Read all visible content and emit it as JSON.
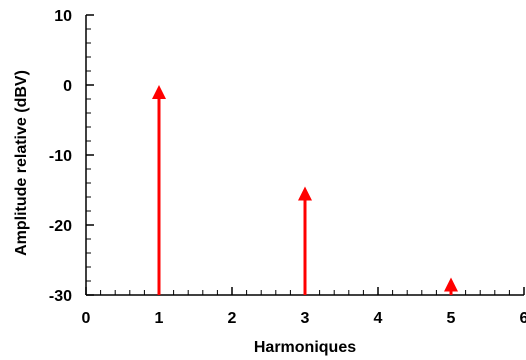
{
  "chart_data": {
    "type": "bar",
    "title": "",
    "xlabel": "Harmoniques",
    "ylabel": "Amplitude relative (dBV)",
    "xlim": [
      0,
      6
    ],
    "ylim": [
      -30,
      10
    ],
    "x_ticks": [
      "0",
      "1",
      "2",
      "3",
      "4",
      "5",
      "6"
    ],
    "y_ticks": [
      "10",
      "0",
      "-10",
      "-20",
      "-30"
    ],
    "grid": false,
    "series": [
      {
        "x": [
          1,
          3,
          5
        ],
        "values": [
          0,
          -14.5,
          -27.5
        ],
        "color": "#ff0000"
      }
    ]
  }
}
